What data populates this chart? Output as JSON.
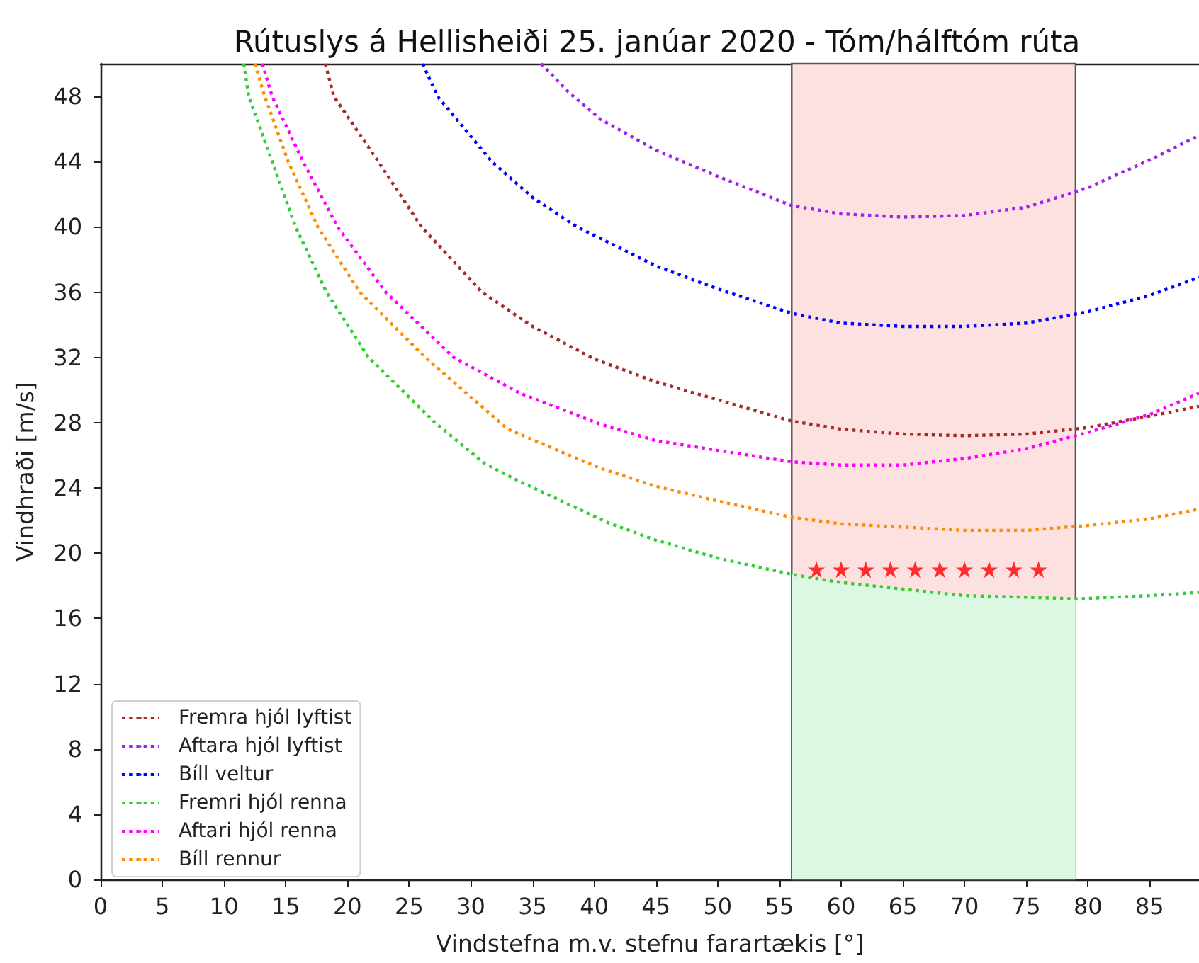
{
  "chart_data": {
    "type": "line",
    "title": "Rútuslys á Hellisheiði 25. janúar 2020 - Tóm/hálftóm rúta",
    "xlabel": "Vindstefna m.v. stefnu farartækis [°]",
    "ylabel": "Vindhraði [m/s]",
    "xlim": [
      0,
      89
    ],
    "xticks": [
      0,
      5,
      10,
      15,
      20,
      25,
      30,
      35,
      40,
      45,
      50,
      55,
      60,
      65,
      70,
      75,
      80,
      85
    ],
    "ylim": [
      0,
      50
    ],
    "yticks": [
      0,
      4,
      8,
      12,
      16,
      20,
      24,
      28,
      32,
      36,
      40,
      44,
      48
    ],
    "grid": false,
    "legend": "bottom left",
    "line_style": "dotted",
    "marker": "none",
    "bands": [
      {
        "axis": "x",
        "from": 56,
        "to": 79,
        "color": "#fde0e0"
      }
    ],
    "series": [
      {
        "name": "Fremra hjól lyftist",
        "color": "#a52a2a",
        "x": [
          18.2,
          18.9,
          22.5,
          26,
          30.9,
          35,
          40,
          45,
          50,
          56,
          60,
          65,
          70,
          75,
          80,
          85,
          89
        ],
        "values": [
          50,
          48,
          44,
          40,
          36,
          33.9,
          31.9,
          30.5,
          29.4,
          28.1,
          27.6,
          27.3,
          27.2,
          27.3,
          27.7,
          28.4,
          29.0
        ]
      },
      {
        "name": "Aftara hjól lyftist",
        "color": "#a020f0",
        "x": [
          35.7,
          38,
          40.5,
          45,
          50,
          56,
          60,
          65,
          70,
          75,
          80,
          85,
          89
        ],
        "values": [
          50,
          48.2,
          46.6,
          44.7,
          43.1,
          41.3,
          40.8,
          40.6,
          40.7,
          41.2,
          42.4,
          44.1,
          45.6
        ]
      },
      {
        "name": "Bíll veltur",
        "color": "#0000ff",
        "x": [
          26.1,
          27.3,
          31.7,
          35,
          38.6,
          40.5,
          45,
          50,
          56,
          60,
          65,
          70,
          75,
          80,
          85,
          89
        ],
        "values": [
          50,
          48,
          44,
          41.8,
          40,
          39.3,
          37.6,
          36.2,
          34.7,
          34.1,
          33.9,
          33.9,
          34.1,
          34.8,
          35.8,
          36.9
        ]
      },
      {
        "name": "Fremri hjól renna",
        "color": "#32cd32",
        "x": [
          11.6,
          12,
          13.9,
          15.8,
          18.3,
          21.7,
          27.1,
          31.1,
          33.4,
          41,
          45,
          50,
          56,
          60,
          65,
          70,
          75,
          79,
          85,
          89
        ],
        "values": [
          50,
          48,
          44,
          40,
          36,
          32,
          28,
          25.5,
          24.6,
          21.9,
          20.8,
          19.7,
          18.7,
          18.2,
          17.8,
          17.4,
          17.3,
          17.2,
          17.4,
          17.6
        ]
      },
      {
        "name": "Aftari hjól renna",
        "color": "#ff00ff",
        "x": [
          13.1,
          13.9,
          16.4,
          19.2,
          23.1,
          28.6,
          34,
          40.5,
          45,
          50,
          56,
          60,
          65,
          70,
          75,
          80,
          85,
          89
        ],
        "values": [
          50,
          48,
          44,
          40,
          36,
          32,
          29.8,
          27.9,
          26.9,
          26.3,
          25.6,
          25.4,
          25.4,
          25.8,
          26.4,
          27.4,
          28.5,
          29.8
        ]
      },
      {
        "name": "Bíll rennur",
        "color": "#ff8c00",
        "x": [
          12.5,
          13.3,
          15.2,
          17.6,
          21,
          26.3,
          33,
          40.5,
          45,
          50,
          56,
          60,
          65,
          70,
          75,
          80,
          85,
          89
        ],
        "values": [
          50,
          48,
          44,
          40,
          36,
          32,
          27.6,
          25.2,
          24.1,
          23.2,
          22.2,
          21.8,
          21.6,
          21.4,
          21.4,
          21.7,
          22.1,
          22.7
        ]
      },
      {
        "type": "area",
        "color": "#dcf8e2",
        "x": [
          56,
          60,
          65,
          70,
          75,
          79
        ],
        "values": [
          18.7,
          18.2,
          17.8,
          17.4,
          17.3,
          17.2
        ]
      },
      {
        "type": "scatter",
        "marker": "star",
        "color": "#ff0000",
        "x": [
          58,
          60,
          62,
          64,
          66,
          68,
          70,
          72,
          74,
          76
        ],
        "values": [
          19,
          19,
          19,
          19,
          19,
          19,
          19,
          19,
          19,
          19
        ]
      }
    ]
  }
}
